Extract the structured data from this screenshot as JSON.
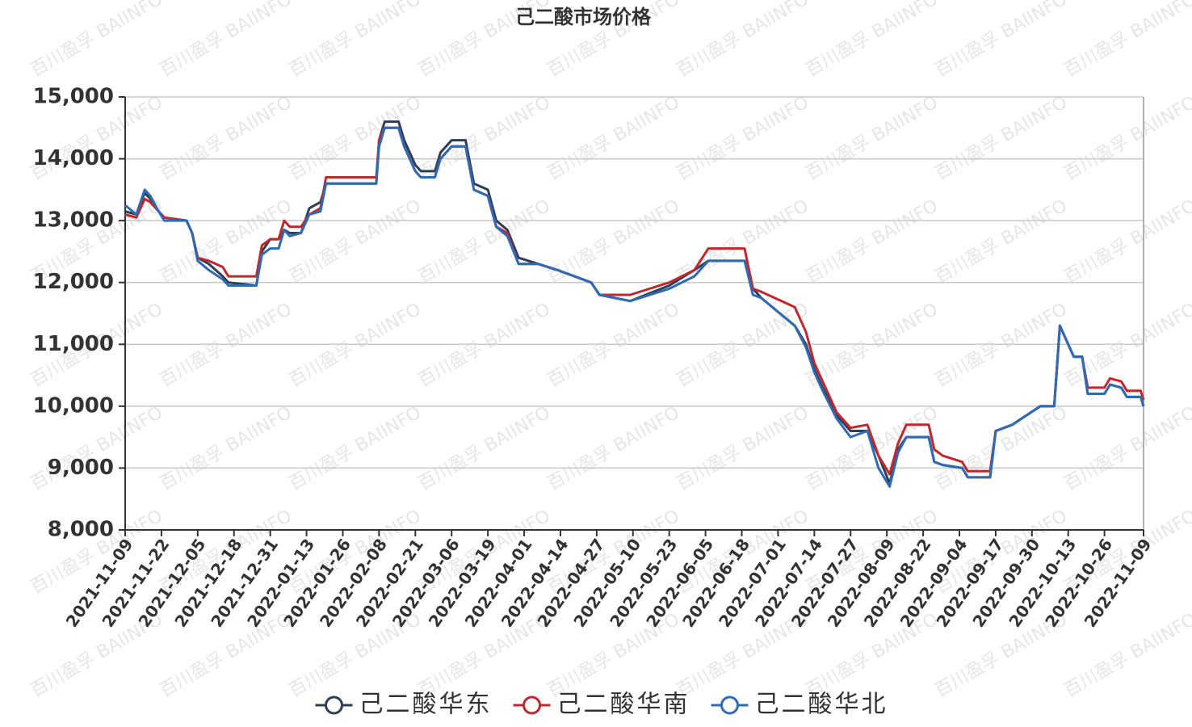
{
  "chart_data": {
    "type": "line",
    "title": "己二酸市场价格",
    "watermark": "百川盈孚 BAIINFO",
    "x": [
      "2021-11-09",
      "2021-11-13",
      "2021-11-16",
      "2021-11-18",
      "2021-11-21",
      "2021-11-23",
      "2021-12-01",
      "2021-12-03",
      "2021-12-05",
      "2021-12-09",
      "2021-12-14",
      "2021-12-16",
      "2021-12-26",
      "2021-12-28",
      "2021-12-31",
      "2022-01-03",
      "2022-01-05",
      "2022-01-07",
      "2022-01-11",
      "2022-01-14",
      "2022-01-18",
      "2022-01-20",
      "2022-02-07",
      "2022-02-08",
      "2022-02-10",
      "2022-02-15",
      "2022-02-17",
      "2022-02-21",
      "2022-02-23",
      "2022-02-28",
      "2022-03-02",
      "2022-03-06",
      "2022-03-11",
      "2022-03-14",
      "2022-03-19",
      "2022-03-22",
      "2022-03-26",
      "2022-03-30",
      "2022-04-06",
      "2022-04-13",
      "2022-04-25",
      "2022-04-28",
      "2022-05-09",
      "2022-05-23",
      "2022-06-01",
      "2022-06-06",
      "2022-06-19",
      "2022-06-22",
      "2022-06-25",
      "2022-07-07",
      "2022-07-11",
      "2022-07-14",
      "2022-07-17",
      "2022-07-22",
      "2022-07-27",
      "2022-08-02",
      "2022-08-06",
      "2022-08-10",
      "2022-08-13",
      "2022-08-16",
      "2022-08-24",
      "2022-08-26",
      "2022-08-29",
      "2022-09-05",
      "2022-09-07",
      "2022-09-15",
      "2022-09-17",
      "2022-09-23",
      "2022-09-28",
      "2022-10-03",
      "2022-10-08",
      "2022-10-10",
      "2022-10-12",
      "2022-10-15",
      "2022-10-18",
      "2022-10-20",
      "2022-10-26",
      "2022-10-28",
      "2022-11-01",
      "2022-11-03",
      "2022-11-08",
      "2022-11-09"
    ],
    "series": [
      {
        "name": "己二酸华东",
        "color": "#2f3e55",
        "values": [
          13150,
          13100,
          13450,
          13350,
          13150,
          13050,
          13000,
          12800,
          12400,
          12300,
          12100,
          12000,
          11950,
          12500,
          12700,
          12700,
          12850,
          12800,
          12800,
          13200,
          13300,
          13600,
          13600,
          14300,
          14600,
          14600,
          14300,
          13900,
          13800,
          13800,
          14100,
          14300,
          14300,
          13600,
          13500,
          13000,
          12850,
          12400,
          12300,
          12200,
          12000,
          11800,
          11700,
          11950,
          12200,
          12350,
          12350,
          11900,
          11750,
          11300,
          11000,
          10600,
          10300,
          9850,
          9600,
          9600,
          9200,
          8750,
          9300,
          9500,
          9500,
          9100,
          9050,
          9000,
          8850,
          8850,
          9600,
          9700,
          9850,
          10000,
          10000,
          11300,
          11100,
          10800,
          10800,
          10200,
          10200,
          10350,
          10300,
          10150,
          10150,
          10000
        ]
      },
      {
        "name": "己二酸华南",
        "color": "#c0282d",
        "values": [
          13100,
          13050,
          13350,
          13300,
          13150,
          13050,
          13000,
          12800,
          12400,
          12350,
          12250,
          12100,
          12100,
          12600,
          12700,
          12700,
          13000,
          12900,
          12900,
          13100,
          13200,
          13700,
          13700,
          14300,
          14500,
          14500,
          14200,
          13800,
          13700,
          13700,
          14000,
          14200,
          14200,
          13500,
          13400,
          12900,
          12800,
          12300,
          12300,
          12200,
          12000,
          11800,
          11800,
          12000,
          12200,
          12550,
          12550,
          11900,
          11850,
          11600,
          11200,
          10700,
          10400,
          9900,
          9650,
          9700,
          9200,
          8900,
          9400,
          9700,
          9700,
          9300,
          9200,
          9100,
          8950,
          8950,
          9600,
          9700,
          9850,
          10000,
          10000,
          11300,
          11100,
          10800,
          10800,
          10300,
          10300,
          10450,
          10400,
          10250,
          10250,
          10100
        ]
      },
      {
        "name": "己二酸华北",
        "color": "#2e6bb5",
        "values": [
          13250,
          13100,
          13500,
          13400,
          13150,
          13000,
          13000,
          12800,
          12350,
          12200,
          12050,
          11950,
          11950,
          12450,
          12550,
          12550,
          12850,
          12750,
          12800,
          13100,
          13150,
          13600,
          13600,
          14200,
          14500,
          14500,
          14200,
          13800,
          13700,
          13700,
          14000,
          14200,
          14200,
          13500,
          13400,
          12900,
          12750,
          12300,
          12300,
          12200,
          12000,
          11800,
          11700,
          11900,
          12100,
          12350,
          12350,
          11800,
          11750,
          11300,
          10950,
          10550,
          10250,
          9800,
          9500,
          9600,
          9000,
          8700,
          9250,
          9500,
          9500,
          9100,
          9050,
          9000,
          8850,
          8850,
          9600,
          9700,
          9850,
          10000,
          10000,
          11300,
          11100,
          10800,
          10800,
          10200,
          10200,
          10350,
          10300,
          10150,
          10150,
          10000
        ]
      }
    ],
    "xlim": [
      "2021-11-09",
      "2022-11-09"
    ],
    "xticks": [
      "2021-11-09",
      "2021-11-22",
      "2021-12-05",
      "2021-12-18",
      "2021-12-31",
      "2022-01-13",
      "2022-01-26",
      "2022-02-08",
      "2022-02-21",
      "2022-03-06",
      "2022-03-19",
      "2022-04-01",
      "2022-04-14",
      "2022-04-27",
      "2022-05-10",
      "2022-05-23",
      "2022-06-05",
      "2022-06-18",
      "2022-07-01",
      "2022-07-14",
      "2022-07-27",
      "2022-08-09",
      "2022-08-22",
      "2022-09-04",
      "2022-09-17",
      "2022-09-30",
      "2022-10-13",
      "2022-10-26",
      "2022-11-09"
    ],
    "ylim": [
      8000,
      15000
    ],
    "yticks": [
      {
        "value": 8000,
        "label": "8,000"
      },
      {
        "value": 9000,
        "label": "9,000"
      },
      {
        "value": 10000,
        "label": "10,000"
      },
      {
        "value": 11000,
        "label": "11,000"
      },
      {
        "value": 12000,
        "label": "12,000"
      },
      {
        "value": 13000,
        "label": "13,000"
      },
      {
        "value": 14000,
        "label": "14,000"
      },
      {
        "value": 15000,
        "label": "15,000"
      }
    ],
    "grid": true,
    "legend": "bottom"
  }
}
